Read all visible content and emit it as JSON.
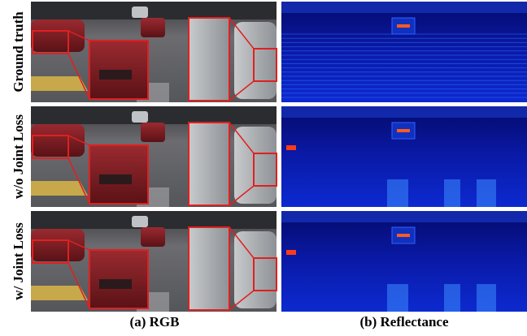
{
  "row_labels": [
    "Ground truth",
    "w/o Joint Loss",
    "w/ Joint Loss"
  ],
  "captions": [
    "(a) RGB",
    "(b) Reflectance"
  ]
}
